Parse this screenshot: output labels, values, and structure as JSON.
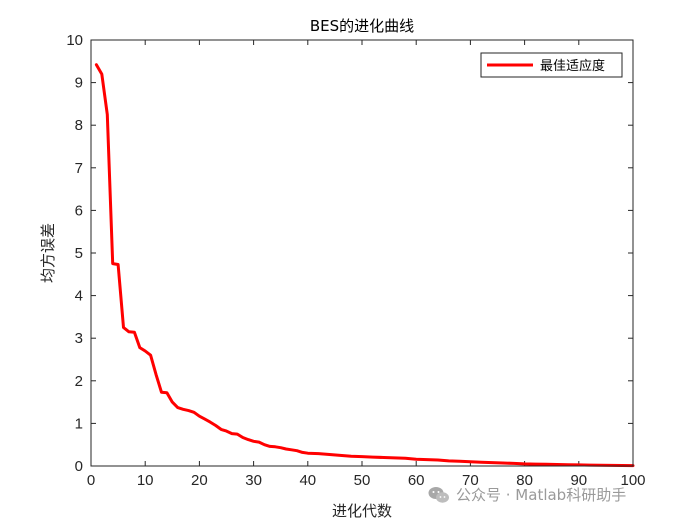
{
  "chart_data": {
    "type": "line",
    "title": "BES的进化曲线",
    "xlabel": "进化代数",
    "ylabel": "均方误差",
    "xlim": [
      0,
      100
    ],
    "ylim": [
      0,
      10
    ],
    "xticks": [
      0,
      10,
      20,
      30,
      40,
      50,
      60,
      70,
      80,
      90,
      100
    ],
    "yticks": [
      0,
      1,
      2,
      3,
      4,
      5,
      6,
      7,
      8,
      9,
      10
    ],
    "legend_position": "top-right",
    "grid": false,
    "series": [
      {
        "name": "最佳适应度",
        "color": "#ff0000",
        "x": [
          1,
          2,
          3,
          4,
          5,
          6,
          7,
          8,
          9,
          10,
          11,
          12,
          13,
          14,
          15,
          16,
          17,
          18,
          19,
          20,
          21,
          22,
          23,
          24,
          25,
          26,
          27,
          28,
          29,
          30,
          31,
          32,
          33,
          34,
          35,
          36,
          37,
          38,
          39,
          40,
          42,
          44,
          46,
          48,
          50,
          52,
          54,
          56,
          58,
          60,
          62,
          64,
          66,
          68,
          70,
          72,
          74,
          76,
          78,
          80,
          82,
          84,
          86,
          88,
          90,
          92,
          94,
          96,
          98,
          100
        ],
        "y": [
          9.42,
          9.2,
          8.25,
          4.75,
          4.73,
          3.25,
          3.15,
          3.14,
          2.78,
          2.7,
          2.6,
          2.15,
          1.73,
          1.72,
          1.5,
          1.37,
          1.33,
          1.3,
          1.26,
          1.17,
          1.1,
          1.03,
          0.95,
          0.86,
          0.82,
          0.76,
          0.75,
          0.67,
          0.62,
          0.58,
          0.56,
          0.5,
          0.46,
          0.45,
          0.43,
          0.4,
          0.38,
          0.36,
          0.32,
          0.3,
          0.29,
          0.27,
          0.25,
          0.23,
          0.22,
          0.21,
          0.2,
          0.19,
          0.18,
          0.16,
          0.15,
          0.14,
          0.12,
          0.11,
          0.1,
          0.09,
          0.08,
          0.07,
          0.06,
          0.05,
          0.045,
          0.04,
          0.035,
          0.03,
          0.025,
          0.02,
          0.018,
          0.015,
          0.012,
          0.01
        ]
      }
    ]
  },
  "watermark": {
    "icon": "wechat-icon",
    "text": "公众号 · Matlab科研助手"
  }
}
